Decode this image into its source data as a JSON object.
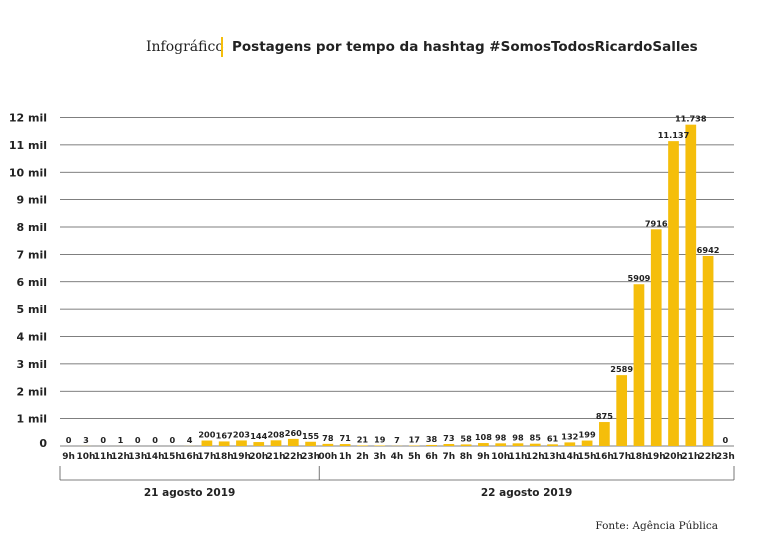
{
  "header": {
    "prefix": "Infográfico",
    "title": "Postagens por tempo da hashtag #SomosTodosRicardoSalles"
  },
  "source": "Fonte: Agência Pública",
  "colors": {
    "bar": "#F5BE0B",
    "divider": "#F5BE0B",
    "grid": "#555555",
    "text": "#222222"
  },
  "chart_data": {
    "type": "bar",
    "title": "Postagens por tempo da hashtag #SomosTodosRicardoSalles",
    "xlabel": "",
    "ylabel": "",
    "ylim": [
      0,
      12000
    ],
    "yticks": [
      {
        "value": 0,
        "label": "0"
      },
      {
        "value": 1000,
        "label": "1 mil"
      },
      {
        "value": 2000,
        "label": "2 mil"
      },
      {
        "value": 3000,
        "label": "3 mil"
      },
      {
        "value": 4000,
        "label": "4 mil"
      },
      {
        "value": 5000,
        "label": "5 mil"
      },
      {
        "value": 6000,
        "label": "6 mil"
      },
      {
        "value": 7000,
        "label": "7 mil"
      },
      {
        "value": 8000,
        "label": "8 mil"
      },
      {
        "value": 9000,
        "label": "9 mil"
      },
      {
        "value": 10000,
        "label": "10 mil"
      },
      {
        "value": 11000,
        "label": "11 mil"
      },
      {
        "value": 12000,
        "label": "12 mil"
      }
    ],
    "grid": true,
    "categories": [
      "9h",
      "10h",
      "11h",
      "12h",
      "13h",
      "14h",
      "15h",
      "16h",
      "17h",
      "18h",
      "19h",
      "20h",
      "21h",
      "22h",
      "23h",
      "00h",
      "1h",
      "2h",
      "3h",
      "4h",
      "5h",
      "6h",
      "7h",
      "8h",
      "9h",
      "10h",
      "11h",
      "12h",
      "13h",
      "14h",
      "15h",
      "16h",
      "17h",
      "18h",
      "19h",
      "20h",
      "21h",
      "22h",
      "23h"
    ],
    "values": [
      0,
      3,
      0,
      1,
      0,
      0,
      0,
      4,
      200,
      167,
      203,
      144,
      208,
      260,
      155,
      78,
      71,
      21,
      19,
      7,
      17,
      38,
      73,
      58,
      108,
      98,
      98,
      85,
      61,
      132,
      199,
      875,
      2589,
      5909,
      7916,
      11137,
      11738,
      6942,
      0
    ],
    "value_labels": [
      "0",
      "3",
      "0",
      "1",
      "0",
      "0",
      "0",
      "4",
      "200",
      "167",
      "203",
      "144",
      "208",
      "260",
      "155",
      "78",
      "71",
      "21",
      "19",
      "7",
      "17",
      "38",
      "73",
      "58",
      "108",
      "98",
      "98",
      "85",
      "61",
      "132",
      "199",
      "875",
      "2589",
      "5909",
      "7916",
      "11.137",
      "11.738",
      "6942",
      "0"
    ],
    "groups": [
      {
        "label": "21 agosto 2019",
        "start": 0,
        "end": 14
      },
      {
        "label": "22 agosto 2019",
        "start": 15,
        "end": 38
      }
    ]
  }
}
